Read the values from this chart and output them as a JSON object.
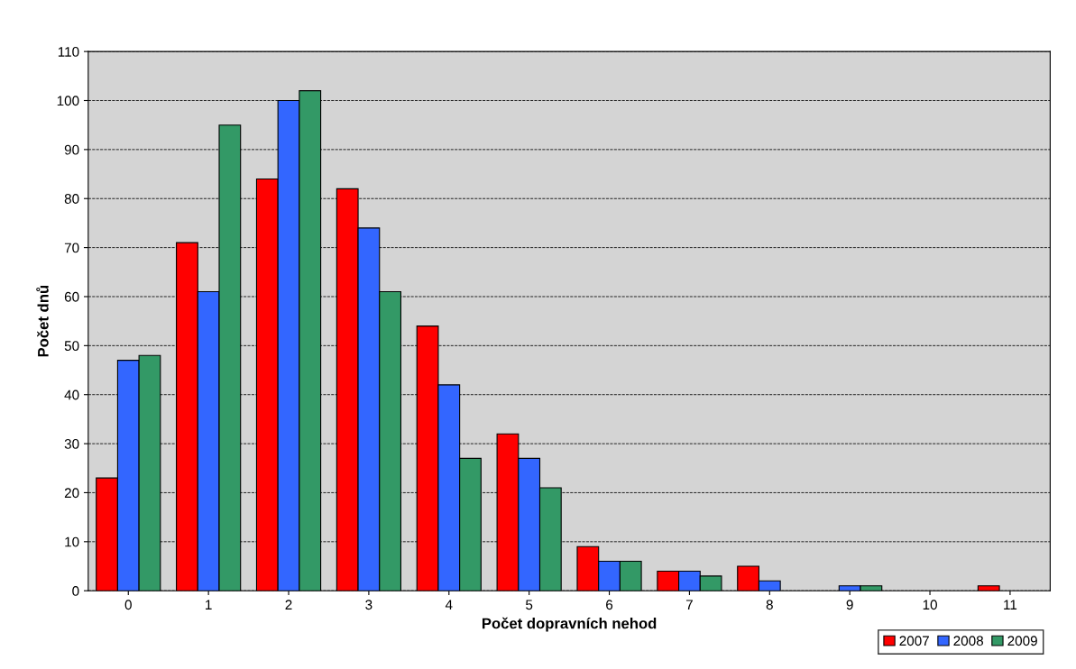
{
  "chart_data": {
    "type": "bar",
    "xlabel": "Počet dopravních nehod",
    "ylabel": "Počet dnů",
    "categories": [
      "0",
      "1",
      "2",
      "3",
      "4",
      "5",
      "6",
      "7",
      "8",
      "9",
      "10",
      "11"
    ],
    "series": [
      {
        "name": "2007",
        "color": "#ff0000",
        "values": [
          23,
          71,
          84,
          82,
          54,
          32,
          9,
          4,
          5,
          null,
          null,
          1
        ]
      },
      {
        "name": "2008",
        "color": "#3366ff",
        "values": [
          47,
          61,
          100,
          74,
          42,
          27,
          6,
          4,
          2,
          1,
          null,
          null
        ]
      },
      {
        "name": "2009",
        "color": "#339966",
        "values": [
          48,
          95,
          102,
          61,
          27,
          21,
          6,
          3,
          null,
          1,
          null,
          null
        ]
      }
    ],
    "ylim": [
      0,
      110
    ],
    "yticks": [
      0,
      10,
      20,
      30,
      40,
      50,
      60,
      70,
      80,
      90,
      100,
      110
    ],
    "grid": "y",
    "line_style": "dashed",
    "legend": "bottom right"
  }
}
